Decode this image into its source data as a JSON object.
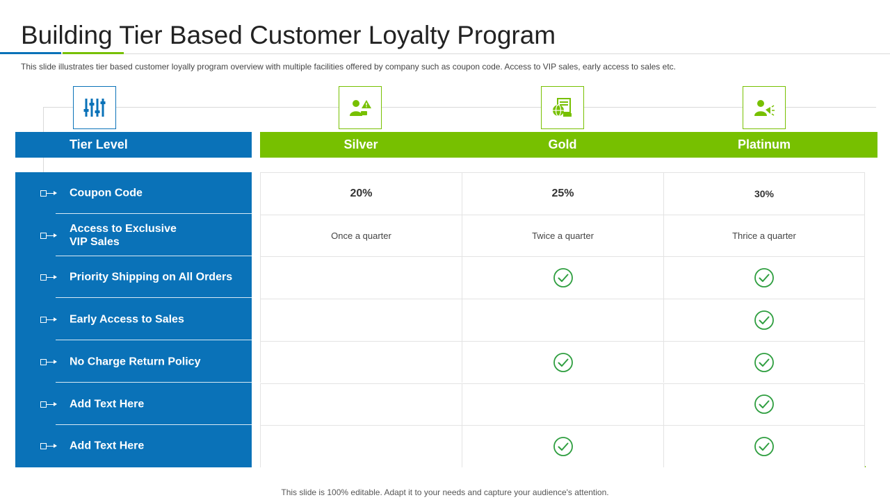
{
  "slide": {
    "title": "Building Tier Based Customer Loyalty Program",
    "subtitle": "This slide illustrates tier based customer loyally program  overview  with multiple facilities offered  by company  such as coupon code. Access to VIP sales, early access to sales etc.",
    "footer": "This slide is 100% editable. Adapt it to your needs and capture your audience's attention."
  },
  "colors": {
    "blue": "#0a72b8",
    "green": "#77c000",
    "check": "#2e9e3f"
  },
  "icons": {
    "tier": "sliders-icon",
    "silver": "person-alert-icon",
    "gold": "global-document-icon",
    "platinum": "person-megaphone-icon"
  },
  "table": {
    "header_label": "Tier Level",
    "tiers": [
      "Silver",
      "Gold",
      "Platinum"
    ],
    "rows": [
      {
        "label": "Coupon Code",
        "values": [
          "20%",
          "25%",
          "30%"
        ]
      },
      {
        "label": "Access to Exclusive\nVIP Sales",
        "values": [
          "Once a quarter",
          "Twice a quarter",
          "Thrice  a quarter"
        ]
      },
      {
        "label": "Priority Shipping on All Orders",
        "values": [
          "",
          "check",
          "check"
        ]
      },
      {
        "label": "Early Access to Sales",
        "values": [
          "",
          "",
          "check"
        ]
      },
      {
        "label": "No Charge Return Policy",
        "values": [
          "",
          "check",
          "check"
        ]
      },
      {
        "label": "Add Text Here",
        "values": [
          "",
          "",
          "check"
        ]
      },
      {
        "label": "Add Text Here",
        "values": [
          "",
          "check",
          "check"
        ]
      }
    ]
  }
}
